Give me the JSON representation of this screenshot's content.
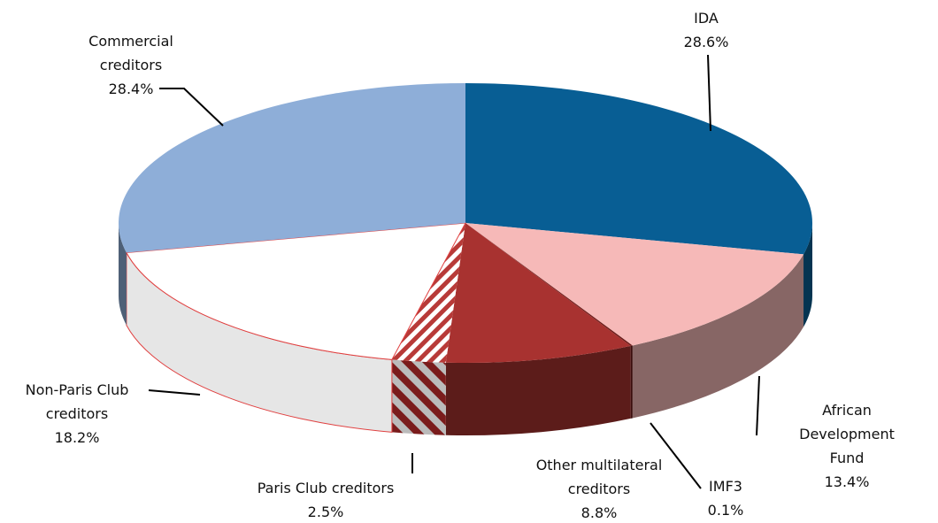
{
  "chart_data": {
    "type": "pie",
    "categories": [
      "IDA",
      "African Development Fund",
      "IMF3",
      "Other multilateral creditors",
      "Paris Club creditors",
      "Non-Paris Club creditors",
      "Commercial creditors"
    ],
    "values": [
      28.6,
      13.4,
      0.1,
      8.8,
      2.5,
      18.2,
      28.4
    ],
    "value_labels": [
      "28.6%",
      "13.4%",
      "0.1%",
      "8.8%",
      "2.5%",
      "18.2%",
      "28.4%"
    ],
    "colors": [
      "#085e94",
      "#f6b9b8",
      "#6b1a18",
      "#a83230",
      "#b83a38",
      "#ffffff",
      "#8eaed8"
    ]
  }
}
